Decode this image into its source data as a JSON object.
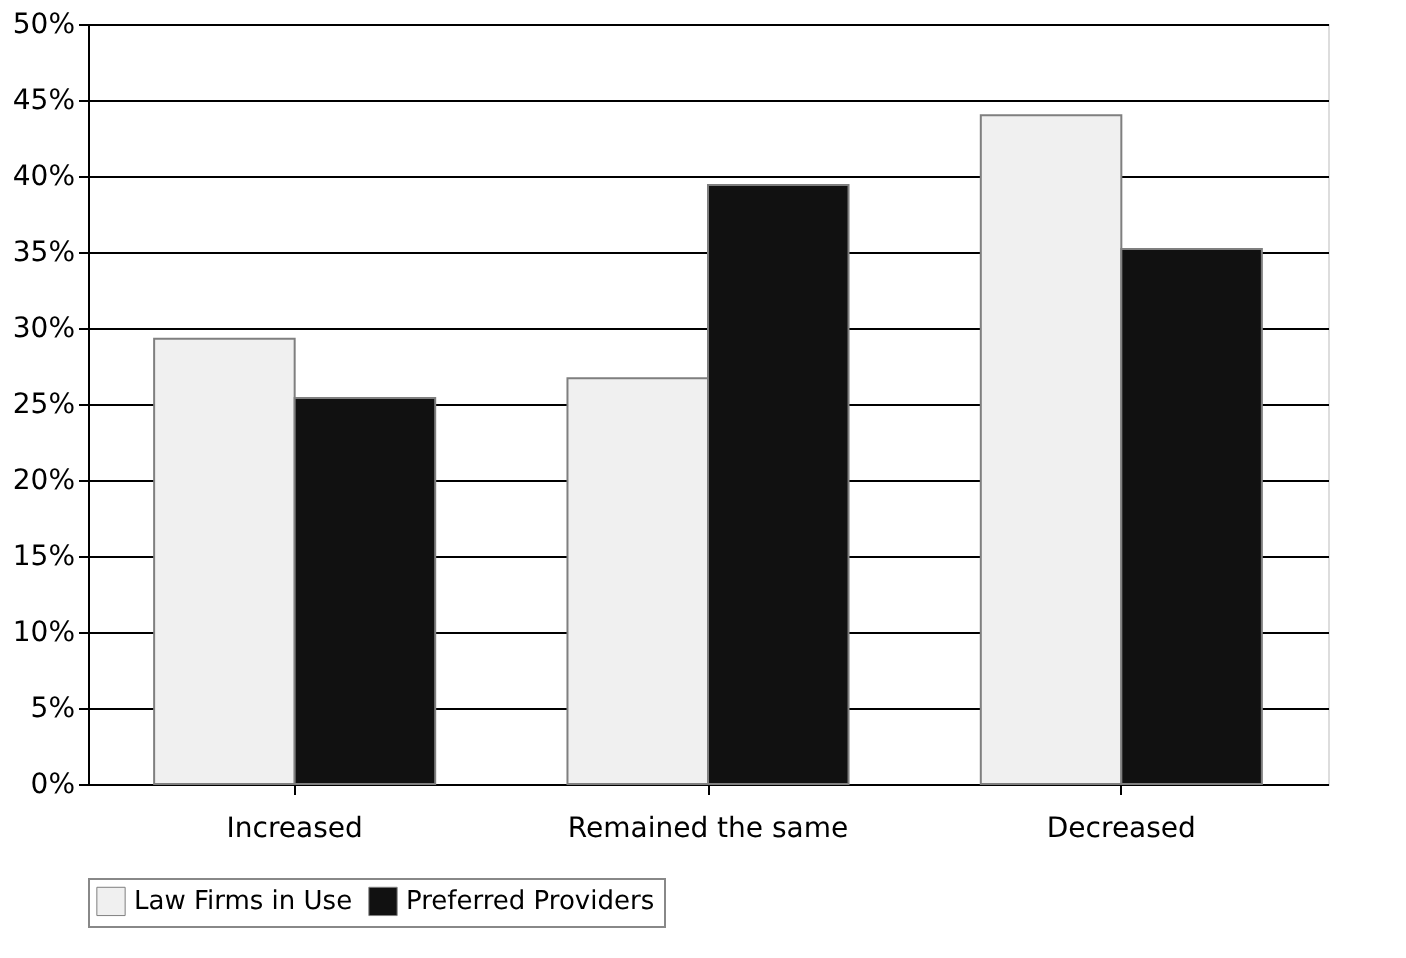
{
  "chart_data": {
    "type": "bar",
    "categories": [
      "Increased",
      "Remained the same",
      "Decreased"
    ],
    "series": [
      {
        "name": "Law Firms in Use",
        "color": "#f0f0f0",
        "values": [
          29.3,
          26.7,
          44.0
        ]
      },
      {
        "name": "Preferred Providers",
        "color": "#111111",
        "values": [
          25.4,
          39.4,
          35.2
        ]
      }
    ],
    "ylim": [
      0,
      50
    ],
    "yticks": [
      {
        "value": 0,
        "label": "0%"
      },
      {
        "value": 5,
        "label": "5%"
      },
      {
        "value": 10,
        "label": "10%"
      },
      {
        "value": 15,
        "label": "15%"
      },
      {
        "value": 20,
        "label": "20%"
      },
      {
        "value": 25,
        "label": "25%"
      },
      {
        "value": 30,
        "label": "30%"
      },
      {
        "value": 35,
        "label": "35%"
      },
      {
        "value": 40,
        "label": "40%"
      },
      {
        "value": 45,
        "label": "45%"
      },
      {
        "value": 50,
        "label": "50%"
      }
    ],
    "grid": "y",
    "legend": "bottom"
  }
}
